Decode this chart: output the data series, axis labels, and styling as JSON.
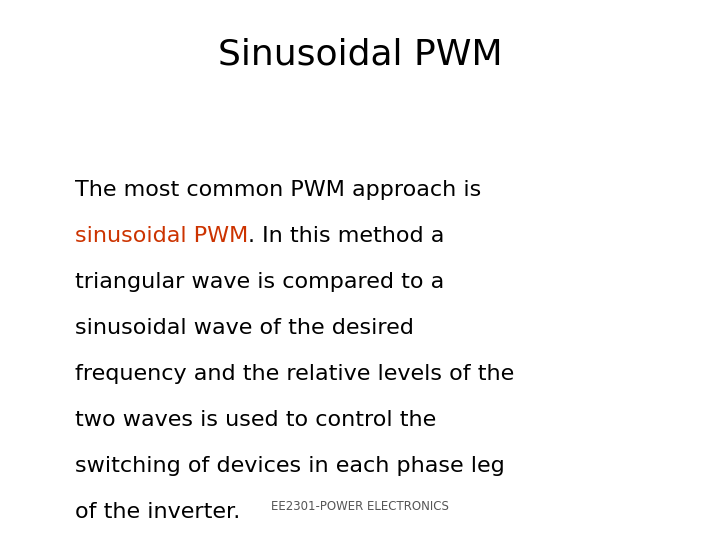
{
  "title": "Sinusoidal PWM",
  "title_fontsize": 26,
  "title_color": "#000000",
  "background_color": "#ffffff",
  "footer_text": "EE2301-POWER ELECTRONICS",
  "footer_fontsize": 8.5,
  "footer_color": "#555555",
  "body_fontsize": 16,
  "body_color": "#000000",
  "highlight_color": "#cc3300",
  "line1": "The most common PWM approach is",
  "line2_highlight": "sinusoidal PWM",
  "line2_rest": ". In this method a",
  "line3": "triangular wave is compared to a",
  "line4": "sinusoidal wave of the desired",
  "line5": "frequency and the relative levels of the",
  "line6": "two waves is used to control the",
  "line7": "switching of devices in each phase leg",
  "line8": "of the inverter."
}
